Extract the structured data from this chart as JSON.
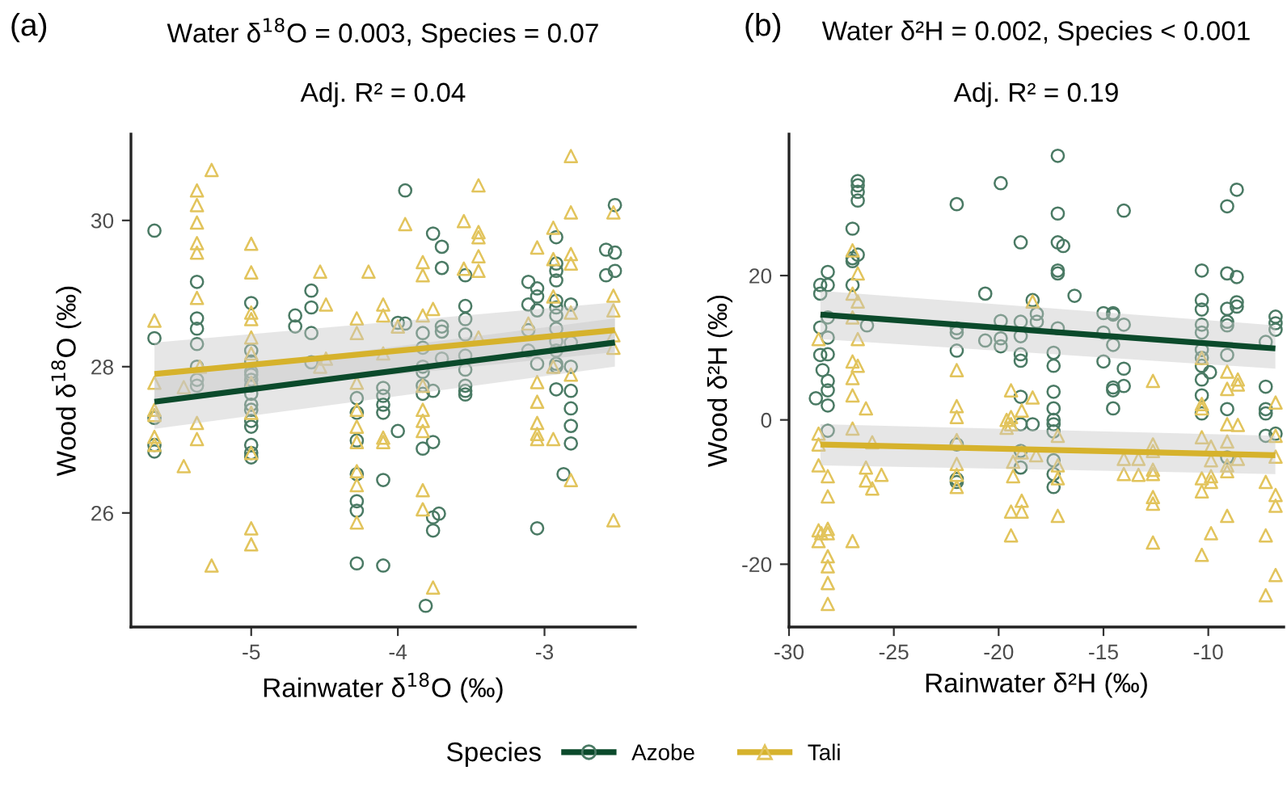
{
  "chart_data": [
    {
      "type": "scatter",
      "title": "Water δ$^{18}$O = 0.003, Species = 0.07",
      "subtitle": "Adj. R² = 0.04",
      "annotations": [
        "(a)"
      ],
      "xlabel": "Rainwater δ$^{18}$O (‰)",
      "ylabel": "Wood δ$^{18}$O (‰)",
      "legend_title": "Species",
      "legend": "bottom",
      "grid": false,
      "xlim": [
        -5.82,
        -2.38
      ],
      "xticks": [
        -5,
        -4,
        -3
      ],
      "ylim": [
        24.44,
        31.18
      ],
      "yticks": [
        26,
        28,
        30
      ],
      "series": [
        {
          "name": "Azobe",
          "marker": "circle",
          "color": "#4a7a64",
          "x": [
            -5.66,
            -5.66,
            -5.66,
            -5.66,
            -5.66,
            -5.37,
            -5.37,
            -5.37,
            -5.37,
            -5.37,
            -5.37,
            -5.37,
            -5.0,
            -5.0,
            -5.0,
            -5.0,
            -5.0,
            -5.0,
            -5.0,
            -5.0,
            -5.0,
            -5.0,
            -5.0,
            -5.0,
            -5.0,
            -5.0,
            -5.0,
            -4.7,
            -4.7,
            -4.59,
            -4.59,
            -4.59,
            -4.59,
            -4.28,
            -4.28,
            -4.28,
            -4.28,
            -4.28,
            -4.28,
            -4.28,
            -4.1,
            -4.1,
            -4.1,
            -4.1,
            -4.1,
            -4.1,
            -4.0,
            -4.0,
            -3.95,
            -3.95,
            -3.83,
            -3.83,
            -3.83,
            -3.83,
            -3.83,
            -3.83,
            -3.83,
            -3.81,
            -3.76,
            -3.76,
            -3.76,
            -3.76,
            -3.76,
            -3.72,
            -3.7,
            -3.7,
            -3.7,
            -3.7,
            -3.7,
            -3.54,
            -3.54,
            -3.54,
            -3.54,
            -3.54,
            -3.54,
            -3.54,
            -3.54,
            -3.54,
            -3.11,
            -3.11,
            -3.11,
            -3.11,
            -3.05,
            -3.05,
            -3.05,
            -3.05,
            -3.05,
            -2.92,
            -2.92,
            -2.92,
            -2.92,
            -2.92,
            -2.92,
            -2.92,
            -2.92,
            -2.92,
            -2.92,
            -2.92,
            -2.92,
            -2.92,
            -2.87,
            -2.82,
            -2.82,
            -2.82,
            -2.82,
            -2.82,
            -2.82,
            -2.82,
            -2.58,
            -2.58,
            -2.52,
            -2.52,
            -2.52
          ],
          "values": [
            29.86,
            28.39,
            27.3,
            26.93,
            26.84,
            29.16,
            28.66,
            28.52,
            28.31,
            28.0,
            27.82,
            27.74,
            28.87,
            28.22,
            28.07,
            27.93,
            27.89,
            27.82,
            27.74,
            27.63,
            27.48,
            27.41,
            27.26,
            27.18,
            26.93,
            26.82,
            26.76,
            28.7,
            28.55,
            29.04,
            28.81,
            28.46,
            28.06,
            27.57,
            27.37,
            26.99,
            26.53,
            26.16,
            26.03,
            25.31,
            27.71,
            27.6,
            27.48,
            27.37,
            26.45,
            25.28,
            28.6,
            27.12,
            28.59,
            30.41,
            28.46,
            28.26,
            28.0,
            27.93,
            27.74,
            27.63,
            26.88,
            24.73,
            29.82,
            27.67,
            26.97,
            25.94,
            25.76,
            25.99,
            29.64,
            29.35,
            28.55,
            28.48,
            28.11,
            29.25,
            28.83,
            28.65,
            28.44,
            28.15,
            27.96,
            27.74,
            27.67,
            27.62,
            29.16,
            28.85,
            28.5,
            28.22,
            29.07,
            28.96,
            28.77,
            28.04,
            25.79,
            29.77,
            29.41,
            29.31,
            29.18,
            28.9,
            28.81,
            28.7,
            28.52,
            28.35,
            28.22,
            28.04,
            28.0,
            27.69,
            26.53,
            28.85,
            28.33,
            28.0,
            27.67,
            27.43,
            27.19,
            26.95,
            29.6,
            29.25,
            30.21,
            29.56,
            29.31
          ]
        },
        {
          "name": "Tali",
          "marker": "triangle",
          "color": "#e2c45c",
          "x": [
            -5.66,
            -5.66,
            -5.66,
            -5.66,
            -5.66,
            -5.66,
            -5.46,
            -5.46,
            -5.37,
            -5.37,
            -5.37,
            -5.37,
            -5.37,
            -5.37,
            -5.37,
            -5.37,
            -5.35,
            -5.27,
            -5.27,
            -5.0,
            -5.0,
            -5.0,
            -5.0,
            -5.0,
            -5.0,
            -5.0,
            -5.0,
            -5.0,
            -5.0,
            -5.0,
            -4.53,
            -4.53,
            -4.49,
            -4.49,
            -4.28,
            -4.28,
            -4.28,
            -4.28,
            -4.28,
            -4.28,
            -4.28,
            -4.28,
            -4.28,
            -4.2,
            -4.1,
            -4.1,
            -4.1,
            -4.1,
            -4.1,
            -4.0,
            -3.95,
            -3.83,
            -3.83,
            -3.83,
            -3.83,
            -3.83,
            -3.83,
            -3.83,
            -3.83,
            -3.83,
            -3.76,
            -3.76,
            -3.55,
            -3.55,
            -3.45,
            -3.45,
            -3.45,
            -3.45,
            -3.45,
            -3.45,
            -3.05,
            -3.05,
            -3.05,
            -3.05,
            -3.05,
            -3.05,
            -3.11,
            -2.94,
            -2.94,
            -2.94,
            -2.94,
            -2.94,
            -2.82,
            -2.82,
            -2.82,
            -2.82,
            -2.82,
            -2.82,
            -2.82,
            -2.53,
            -2.53,
            -2.53,
            -2.53,
            -2.53,
            -2.53
          ],
          "values": [
            28.63,
            27.78,
            27.41,
            27.34,
            27.04,
            26.93,
            27.72,
            26.64,
            30.41,
            30.21,
            29.97,
            29.69,
            29.56,
            28.94,
            27.23,
            27.01,
            28.0,
            30.69,
            25.28,
            29.68,
            29.29,
            28.74,
            28.65,
            28.4,
            28.18,
            27.78,
            27.37,
            26.82,
            25.79,
            25.57,
            29.3,
            28.0,
            28.85,
            28.11,
            28.66,
            28.46,
            27.78,
            27.41,
            27.18,
            26.97,
            26.57,
            26.38,
            25.87,
            29.3,
            28.85,
            28.7,
            28.18,
            27.03,
            26.97,
            28.55,
            29.95,
            29.43,
            29.25,
            28.7,
            27.74,
            27.41,
            27.26,
            27.12,
            26.31,
            26.05,
            28.79,
            24.98,
            29.99,
            29.34,
            30.48,
            29.84,
            29.77,
            29.51,
            29.31,
            28.4,
            29.63,
            27.79,
            27.52,
            27.23,
            27.08,
            27.01,
            28.59,
            29.9,
            29.47,
            28.96,
            28.0,
            27.01,
            30.88,
            30.11,
            29.54,
            29.41,
            28.74,
            27.89,
            26.45,
            30.11,
            28.97,
            28.77,
            28.43,
            28.26,
            25.9
          ]
        },
        {
          "type": "line",
          "color": "#0b4a2b",
          "x": [
            -5.66,
            -2.52
          ],
          "values": [
            27.52,
            28.33
          ],
          "lower": [
            27.15,
            28.0
          ],
          "upper": [
            27.85,
            28.66
          ]
        },
        {
          "type": "line",
          "color": "#d6b22c",
          "x": [
            -5.66,
            -2.52
          ],
          "values": [
            27.9,
            28.5
          ],
          "lower": [
            27.55,
            28.2
          ],
          "upper": [
            28.33,
            28.88
          ]
        }
      ]
    },
    {
      "type": "scatter",
      "title": "Water δ²H = 0.002, Species < 0.001",
      "subtitle": "Adj. R² = 0.19",
      "annotations": [
        "(b)"
      ],
      "xlabel": "Rainwater δ²H (‰)",
      "ylabel": "Wood δ²H (‰)",
      "legend": "bottom",
      "grid": false,
      "xlim": [
        -30.0,
        -6.4
      ],
      "xticks": [
        -30,
        -25,
        -20,
        -15,
        -10
      ],
      "ylim": [
        -28.7,
        39.6
      ],
      "yticks": [
        -20,
        0,
        20
      ],
      "series": [
        {
          "name": "Azobe",
          "marker": "circle",
          "color": "#4a7a64",
          "x": [
            -28.72,
            -28.51,
            -28.51,
            -28.51,
            -28.51,
            -28.4,
            -28.15,
            -28.15,
            -28.15,
            -28.15,
            -28.15,
            -28.15,
            -28.15,
            -28.15,
            -28.15,
            -26.97,
            -26.97,
            -26.97,
            -26.97,
            -26.72,
            -26.72,
            -26.72,
            -26.72,
            -26.72,
            -26.28,
            -22.0,
            -22.0,
            -22.0,
            -22.0,
            -22.0,
            -22.0,
            -22.0,
            -20.64,
            -20.64,
            -19.9,
            -19.9,
            -19.9,
            -19.9,
            -18.95,
            -18.95,
            -18.95,
            -18.95,
            -18.95,
            -18.95,
            -18.95,
            -18.95,
            -18.95,
            -18.38,
            -18.38,
            -18.18,
            -18.18,
            -17.38,
            -17.38,
            -17.38,
            -17.38,
            -17.38,
            -17.38,
            -17.38,
            -17.38,
            -17.38,
            -17.38,
            -17.18,
            -17.18,
            -17.18,
            -17.18,
            -17.18,
            -17.18,
            -16.92,
            -16.38,
            -15.0,
            -15.0,
            -15.0,
            -14.54,
            -14.54,
            -14.54,
            -14.54,
            -14.54,
            -14.54,
            -14.03,
            -14.03,
            -14.03,
            -14.03,
            -10.31,
            -10.31,
            -10.31,
            -10.31,
            -10.31,
            -10.31,
            -10.31,
            -10.31,
            -10.31,
            -10.31,
            -10.31,
            -9.92,
            -9.1,
            -9.1,
            -9.1,
            -9.1,
            -9.1,
            -9.1,
            -9.1,
            -9.1,
            -8.64,
            -8.64,
            -8.64,
            -8.64,
            -7.26,
            -7.26,
            -7.26,
            -7.26,
            -7.26,
            -6.79,
            -6.79,
            -6.79,
            -6.79
          ],
          "values": [
            3.0,
            18.7,
            17.5,
            12.8,
            9.0,
            6.9,
            20.5,
            18.7,
            14.2,
            11.4,
            9.1,
            5.4,
            4.1,
            2.0,
            -1.5,
            26.5,
            22.4,
            22.0,
            18.7,
            33.1,
            32.5,
            31.6,
            30.4,
            22.9,
            13.1,
            29.9,
            12.7,
            12.1,
            9.6,
            -3.4,
            -8.2,
            -8.6,
            17.5,
            11.0,
            32.8,
            13.7,
            11.3,
            10.2,
            24.6,
            13.6,
            11.6,
            9.1,
            8.2,
            3.2,
            -0.6,
            -4.3,
            -6.6,
            16.6,
            -0.6,
            14.7,
            13.6,
            9.3,
            7.5,
            3.9,
            1.6,
            0.0,
            -0.6,
            -1.6,
            -5.6,
            -7.5,
            -9.3,
            36.6,
            28.6,
            24.6,
            20.7,
            20.3,
            12.7,
            24.1,
            17.2,
            14.8,
            12.1,
            8.1,
            14.8,
            14.6,
            10.4,
            4.5,
            4.1,
            1.6,
            29.0,
            13.2,
            7.1,
            4.7,
            20.7,
            16.6,
            15.3,
            13.2,
            12.1,
            9.7,
            8.6,
            7.5,
            5.6,
            3.4,
            0.9,
            6.6,
            29.6,
            20.3,
            15.4,
            13.6,
            13.1,
            9.0,
            1.5,
            -5.2,
            31.9,
            19.8,
            16.3,
            15.7,
            10.8,
            4.6,
            1.5,
            0.9,
            -2.2,
            14.3,
            13.4,
            12.5,
            -1.9
          ]
        },
        {
          "name": "Tali",
          "marker": "triangle",
          "color": "#e2c45c",
          "x": [
            -28.59,
            -28.59,
            -28.59,
            -28.59,
            -28.59,
            -28.59,
            -28.15,
            -28.15,
            -28.15,
            -28.15,
            -28.15,
            -28.15,
            -28.15,
            -28.15,
            -28.46,
            -26.97,
            -26.97,
            -26.97,
            -26.97,
            -26.97,
            -26.97,
            -26.97,
            -26.97,
            -26.72,
            -26.72,
            -26.72,
            -26.72,
            -26.33,
            -26.33,
            -26.33,
            -26.03,
            -26.03,
            -25.59,
            -22.0,
            -22.0,
            -22.0,
            -22.0,
            -22.0,
            -22.0,
            -22.0,
            -19.62,
            -19.62,
            -19.41,
            -19.41,
            -19.41,
            -19.41,
            -19.41,
            -19.31,
            -19.31,
            -18.9,
            -18.9,
            -18.9,
            -18.9,
            -18.38,
            -18.38,
            -18.21,
            -17.18,
            -17.18,
            -17.18,
            -17.18,
            -14.03,
            -14.03,
            -13.33,
            -13.33,
            -12.64,
            -12.64,
            -12.64,
            -12.64,
            -12.64,
            -12.64,
            -12.64,
            -12.64,
            -10.31,
            -10.31,
            -10.31,
            -10.31,
            -10.31,
            -10.31,
            -10.31,
            -9.87,
            -9.87,
            -9.87,
            -9.87,
            -9.87,
            -9.1,
            -9.1,
            -9.1,
            -9.1,
            -9.1,
            -9.1,
            -9.1,
            -8.59,
            -8.59,
            -8.59,
            -8.59,
            -7.26,
            -7.26,
            -7.26,
            -6.79,
            -6.79,
            -6.79,
            -6.79,
            -6.79,
            -6.79
          ],
          "values": [
            11.2,
            -1.9,
            -3.4,
            -6.3,
            -15.3,
            -16.8,
            -7.8,
            -10.6,
            -15.1,
            -15.7,
            -18.9,
            -20.3,
            -22.6,
            -25.5,
            -15.7,
            23.5,
            17.5,
            14.2,
            8.1,
            5.8,
            3.4,
            -1.2,
            -16.8,
            16.4,
            11.2,
            7.5,
            20.3,
            1.6,
            -6.6,
            -8.4,
            -3.1,
            -9.5,
            -7.6,
            6.9,
            1.9,
            0.4,
            -2.8,
            -6.1,
            -7.6,
            -9.3,
            0.0,
            -1.1,
            4.1,
            0.4,
            -0.6,
            -12.7,
            -16.0,
            -5.8,
            -7.8,
            1.3,
            -4.5,
            -11.2,
            -12.7,
            16.4,
            3.1,
            -4.9,
            -2.2,
            -6.3,
            -8.1,
            -13.3,
            -5.4,
            -7.5,
            -5.4,
            -7.6,
            5.4,
            -3.4,
            -4.3,
            -6.9,
            -7.5,
            -10.7,
            -11.6,
            -17.0,
            8.6,
            2.2,
            1.6,
            -2.4,
            -8.1,
            -9.9,
            -18.7,
            -3.7,
            -5.6,
            -7.8,
            -8.6,
            -15.7,
            6.7,
            4.3,
            -0.6,
            -3.0,
            -6.3,
            -7.1,
            -13.3,
            5.6,
            4.9,
            -0.7,
            -5.4,
            -8.6,
            -16.0,
            -24.3,
            2.4,
            -2.2,
            -5.1,
            -10.4,
            -11.9,
            -21.5
          ]
        },
        {
          "type": "line",
          "color": "#0b4a2b",
          "x": [
            -28.5,
            -6.8
          ],
          "values": [
            14.6,
            9.9
          ],
          "lower": [
            11.2,
            7.1
          ],
          "upper": [
            17.9,
            13.1
          ]
        },
        {
          "type": "line",
          "color": "#d6b22c",
          "x": [
            -28.5,
            -6.8
          ],
          "values": [
            -3.4,
            -4.9
          ],
          "lower": [
            -6.3,
            -7.5
          ],
          "upper": [
            -0.6,
            -2.2
          ]
        }
      ]
    }
  ]
}
